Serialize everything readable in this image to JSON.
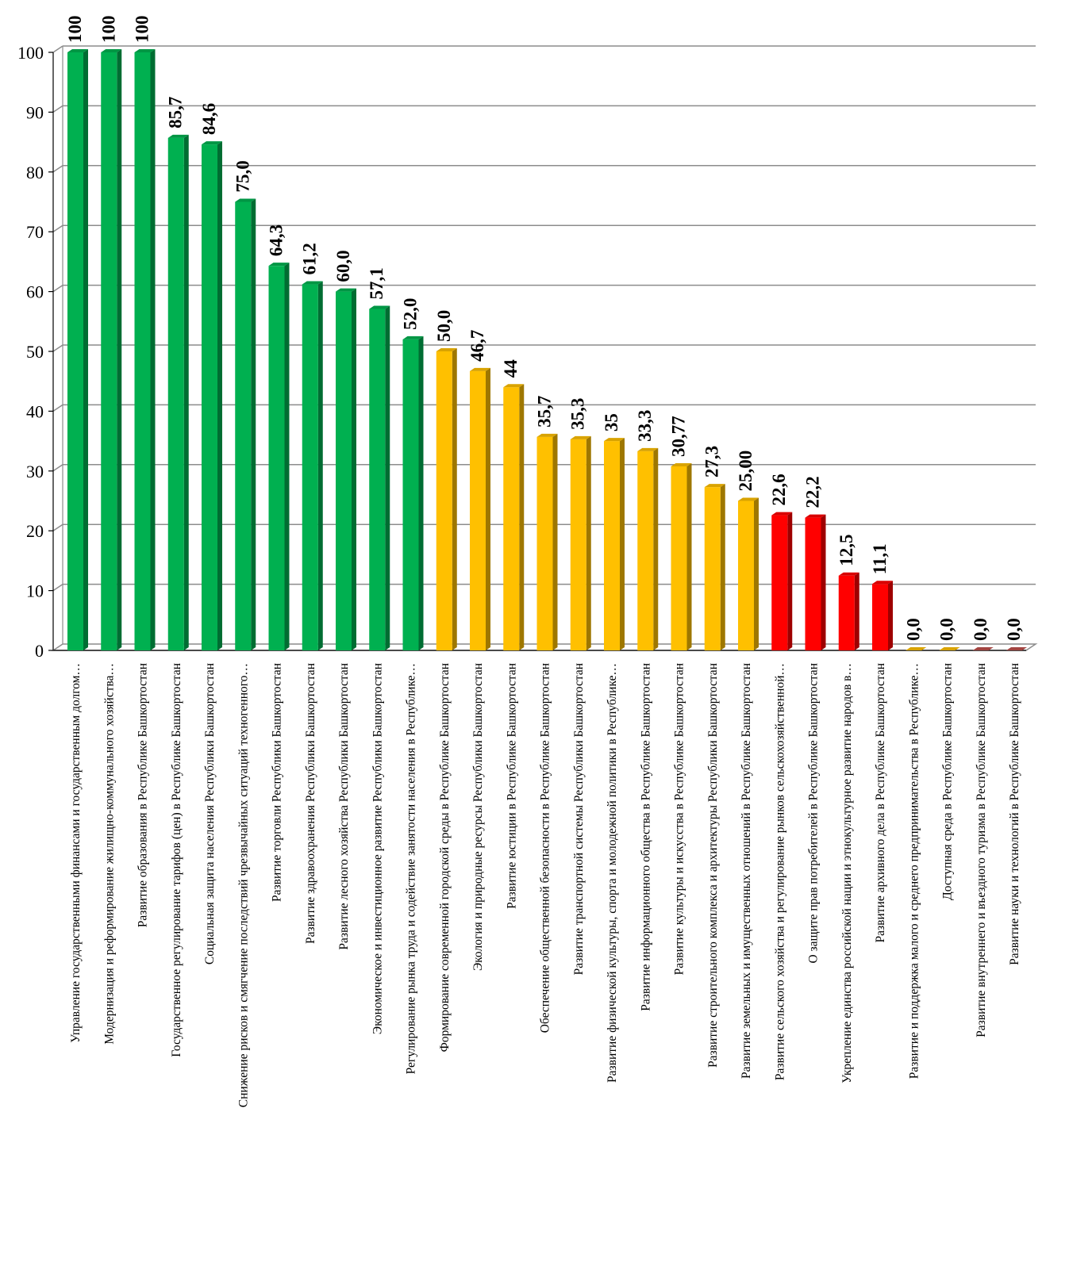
{
  "chart_data": {
    "type": "bar",
    "title": "",
    "xlabel": "",
    "ylabel": "",
    "ylim": [
      0,
      100
    ],
    "yticks": [
      0,
      10,
      20,
      30,
      40,
      50,
      60,
      70,
      80,
      90,
      100
    ],
    "grid": true,
    "legend": "none",
    "colors": {
      "green": "#00b050",
      "yellow": "#ffc000",
      "red": "#ff0000",
      "dark_red": "#c0504d"
    },
    "categories": [
      "Управление государственными финансами и государственным долгом…",
      "Модернизация и реформирование жилищно-коммунального хозяйства…",
      "Развитие образования в Республике Башкортостан",
      "Государственное регулирование тарифов (цен) в Республике Башкортостан",
      "Социальная защита населения Республики Башкортостан",
      "Снижение рисков и смягчение последствий чрезвычайных ситуаций техногенного…",
      "Развитие торговли Республики Башкортостан",
      "Развитие здравоохранения Республики Башкортостан",
      "Развитие лесного хозяйства Республики Башкортостан",
      "Экономическое и инвестиционное развитие Республики Башкортостан",
      "Регулирование рынка труда и содействие занятости населения в Республике…",
      "Формирование современной городской среды в Республике Башкортостан",
      "Экология и природные ресурсы Республики Башкортостан",
      "Развитие юстиции в Республике Башкортостан",
      "Обеспечение общественной безопасности в Республике Башкортостан",
      "Развитие транспортной системы Республики Башкортостан",
      "Развитие физической культуры, спорта и молодежной политики в Республике…",
      "Развитие информационного общества в Республике Башкортостан",
      "Развитие культуры и искусства в Республике Башкортостан",
      "Развитие строительного комплекса и архитектуры Республики Башкортостан",
      "Развитие земельных и имущественных отношений в Республике Башкортостан",
      "Развитие сельского хозяйства и регулирование рынков сельскохозяйственной…",
      "О защите прав потребителей в Республике Башкортостан",
      "Укрепление единства российской нации и этнокультурное развитие народов в…",
      "Развитие архивного дела в Республике Башкортостан",
      "Развитие и поддержка малого и среднего предпринимательства в Республике…",
      "Доступная среда в Республике Башкортостан",
      "Развитие внутреннего и въездного туризма в Республике Башкортостан",
      "Развитие науки и технологий в Республике Башкортостан"
    ],
    "values": [
      100,
      100,
      100,
      85.7,
      84.6,
      75.0,
      64.3,
      61.2,
      60.0,
      57.1,
      52.0,
      50.0,
      46.7,
      44,
      35.7,
      35.3,
      35,
      33.3,
      30.77,
      27.3,
      25.0,
      22.6,
      22.2,
      12.5,
      11.1,
      0.0,
      0.0,
      0.0,
      0.0
    ],
    "data_labels": [
      "100",
      "100",
      "100",
      "85,7",
      "84,6",
      "75,0",
      "64,3",
      "61,2",
      "60,0",
      "57,1",
      "52,0",
      "50,0",
      "46,7",
      "44",
      "35,7",
      "35,3",
      "35",
      "33,3",
      "30,77",
      "27,3",
      "25,00",
      "22,6",
      "22,2",
      "12,5",
      "11,1",
      "0,0",
      "0,0",
      "0,0",
      "0,0"
    ],
    "bar_colors": [
      "green",
      "green",
      "green",
      "green",
      "green",
      "green",
      "green",
      "green",
      "green",
      "green",
      "green",
      "yellow",
      "yellow",
      "yellow",
      "yellow",
      "yellow",
      "yellow",
      "yellow",
      "yellow",
      "yellow",
      "yellow",
      "red",
      "red",
      "red",
      "red",
      "yellow",
      "yellow",
      "dark_red",
      "dark_red"
    ]
  }
}
